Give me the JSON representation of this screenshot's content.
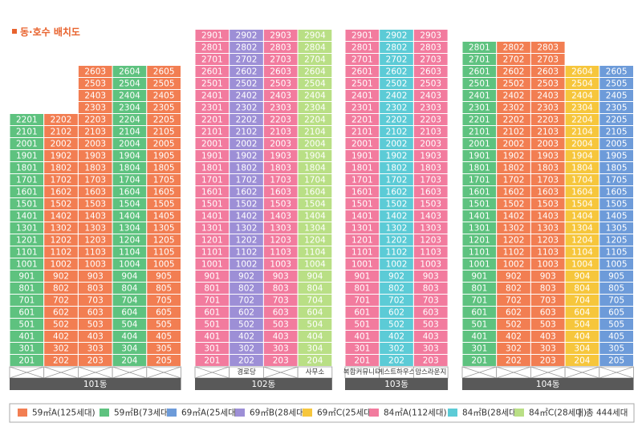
{
  "title": "동·호수 배치도",
  "types": [
    {
      "name": "59㎡A(125세대)",
      "color": "#f27e52"
    },
    {
      "name": "59㎡B(73세대)",
      "color": "#5ec27f"
    },
    {
      "name": "69㎡A(25세대)",
      "color": "#6d9bd9"
    },
    {
      "name": "69㎡B(28세대)",
      "color": "#9d8fd6"
    },
    {
      "name": "69㎡C(25세대)",
      "color": "#f6c63c"
    },
    {
      "name": "84㎡A(112세대)",
      "color": "#f27b9e"
    },
    {
      "name": "84㎡B(28세대)",
      "color": "#5ccbd6"
    },
    {
      "name": "84㎡C(28세대)",
      "color": "#b9df85"
    }
  ],
  "total": "총 444세대",
  "buildings": [
    {
      "name": "101동",
      "columns": [
        {
          "type": 1,
          "ground": null,
          "units": [
            "2201",
            "2101",
            "2001",
            "1901",
            "1801",
            "1701",
            "1601",
            "1501",
            "1401",
            "1301",
            "1201",
            "1101",
            "1001",
            "901",
            "801",
            "701",
            "601",
            "501",
            "401",
            "301",
            "201"
          ]
        },
        {
          "type": 0,
          "ground": null,
          "units": [
            "2202",
            "2102",
            "2002",
            "1902",
            "1802",
            "1702",
            "1602",
            "1502",
            "1402",
            "1302",
            "1202",
            "1102",
            "1002",
            "902",
            "802",
            "702",
            "602",
            "502",
            "402",
            "302",
            "202"
          ]
        },
        {
          "type": 0,
          "ground": null,
          "units": [
            "2603",
            "2503",
            "2403",
            "2303",
            "2203",
            "2103",
            "2003",
            "1903",
            "1803",
            "1703",
            "1603",
            "1503",
            "1403",
            "1303",
            "1203",
            "1103",
            "1003",
            "903",
            "803",
            "703",
            "603",
            "503",
            "403",
            "303",
            "203"
          ]
        },
        {
          "type": 1,
          "ground": null,
          "units": [
            "2604",
            "2504",
            "2404",
            "2304",
            "2204",
            "2104",
            "2004",
            "1904",
            "1804",
            "1704",
            "1604",
            "1504",
            "1404",
            "1304",
            "1204",
            "1104",
            "1004",
            "904",
            "804",
            "704",
            "604",
            "504",
            "404",
            "304",
            "204"
          ]
        },
        {
          "type": 0,
          "ground": null,
          "units": [
            "2605",
            "2505",
            "2405",
            "2305",
            "2205",
            "2105",
            "2005",
            "1905",
            "1805",
            "1705",
            "1605",
            "1505",
            "1405",
            "1305",
            "1205",
            "1105",
            "1005",
            "905",
            "805",
            "705",
            "605",
            "505",
            "405",
            "305",
            "205"
          ]
        }
      ]
    },
    {
      "name": "102동",
      "columns": [
        {
          "type": 5,
          "ground": null,
          "units": [
            "2901",
            "2801",
            "2701",
            "2601",
            "2501",
            "2401",
            "2301",
            "2201",
            "2101",
            "2001",
            "1901",
            "1801",
            "1701",
            "1601",
            "1501",
            "1401",
            "1301",
            "1201",
            "1101",
            "1001",
            "901",
            "801",
            "701",
            "601",
            "501",
            "401",
            "301",
            "201"
          ]
        },
        {
          "type": 3,
          "ground": "경로당",
          "units": [
            "2902",
            "2802",
            "2702",
            "2602",
            "2502",
            "2402",
            "2302",
            "2202",
            "2102",
            "2002",
            "1902",
            "1802",
            "1702",
            "1602",
            "1502",
            "1402",
            "1302",
            "1202",
            "1102",
            "1002",
            "902",
            "802",
            "702",
            "602",
            "502",
            "402",
            "302",
            "202"
          ]
        },
        {
          "type": 5,
          "ground": null,
          "units": [
            "2903",
            "2803",
            "2703",
            "2603",
            "2503",
            "2403",
            "2303",
            "2203",
            "2103",
            "2003",
            "1903",
            "1803",
            "1703",
            "1603",
            "1503",
            "1403",
            "1303",
            "1203",
            "1103",
            "1003",
            "903",
            "803",
            "703",
            "603",
            "503",
            "403",
            "303",
            "203"
          ]
        },
        {
          "type": 7,
          "ground": "사무소",
          "units": [
            "2904",
            "2804",
            "2704",
            "2604",
            "2504",
            "2404",
            "2304",
            "2204",
            "2104",
            "2004",
            "1904",
            "1804",
            "1704",
            "1604",
            "1504",
            "1404",
            "1304",
            "1204",
            "1104",
            "1004",
            "904",
            "804",
            "704",
            "604",
            "504",
            "404",
            "304",
            "204"
          ]
        }
      ]
    },
    {
      "name": "103동",
      "columns": [
        {
          "type": 5,
          "ground": "복합커뮤니티",
          "units": [
            "2901",
            "2801",
            "2701",
            "2601",
            "2501",
            "2401",
            "2301",
            "2201",
            "2101",
            "2001",
            "1901",
            "1801",
            "1701",
            "1601",
            "1501",
            "1401",
            "1301",
            "1201",
            "1101",
            "1001",
            "901",
            "801",
            "701",
            "601",
            "501",
            "401",
            "301",
            "201"
          ]
        },
        {
          "type": 6,
          "ground": "게스트하우스",
          "units": [
            "2902",
            "2802",
            "2702",
            "2602",
            "2502",
            "2402",
            "2302",
            "2202",
            "2102",
            "2002",
            "1902",
            "1802",
            "1702",
            "1602",
            "1502",
            "1402",
            "1302",
            "1202",
            "1102",
            "1002",
            "902",
            "802",
            "702",
            "602",
            "502",
            "402",
            "302",
            "202"
          ]
        },
        {
          "type": 5,
          "ground": "맘스라운지",
          "units": [
            "2903",
            "2803",
            "2703",
            "2603",
            "2503",
            "2403",
            "2303",
            "2203",
            "2103",
            "2003",
            "1903",
            "1803",
            "1703",
            "1603",
            "1503",
            "1403",
            "1303",
            "1203",
            "1103",
            "1003",
            "903",
            "803",
            "703",
            "603",
            "503",
            "403",
            "303",
            "203"
          ]
        }
      ]
    },
    {
      "name": "104동",
      "columns": [
        {
          "type": 1,
          "ground": null,
          "units": [
            "2801",
            "2701",
            "2601",
            "2501",
            "2401",
            "2301",
            "2201",
            "2101",
            "2001",
            "1901",
            "1801",
            "1701",
            "1601",
            "1501",
            "1401",
            "1301",
            "1201",
            "1101",
            "1001",
            "901",
            "801",
            "701",
            "601",
            "501",
            "401",
            "301",
            "201"
          ]
        },
        {
          "type": 0,
          "ground": null,
          "units": [
            "2802",
            "2702",
            "2602",
            "2502",
            "2402",
            "2302",
            "2202",
            "2102",
            "2002",
            "1902",
            "1802",
            "1702",
            "1602",
            "1502",
            "1402",
            "1302",
            "1202",
            "1102",
            "1002",
            "902",
            "802",
            "702",
            "602",
            "502",
            "402",
            "302",
            "202"
          ]
        },
        {
          "type": 0,
          "ground": null,
          "units": [
            "2803",
            "2703",
            "2603",
            "2503",
            "2403",
            "2303",
            "2203",
            "2103",
            "2003",
            "1903",
            "1803",
            "1703",
            "1603",
            "1503",
            "1403",
            "1303",
            "1203",
            "1103",
            "1003",
            "903",
            "803",
            "703",
            "603",
            "503",
            "403",
            "303",
            "203"
          ]
        },
        {
          "type": 4,
          "ground": null,
          "units": [
            "2604",
            "2504",
            "2404",
            "2304",
            "2204",
            "2104",
            "2004",
            "1904",
            "1804",
            "1704",
            "1604",
            "1504",
            "1404",
            "1304",
            "1204",
            "1104",
            "1004",
            "904",
            "804",
            "704",
            "604",
            "504",
            "404",
            "304",
            "204"
          ]
        },
        {
          "type": 2,
          "ground": null,
          "units": [
            "2605",
            "2505",
            "2405",
            "2305",
            "2205",
            "2105",
            "2005",
            "1905",
            "1805",
            "1705",
            "1605",
            "1505",
            "1405",
            "1305",
            "1205",
            "1105",
            "1005",
            "905",
            "805",
            "705",
            "605",
            "505",
            "405",
            "305",
            "205"
          ]
        }
      ]
    }
  ]
}
